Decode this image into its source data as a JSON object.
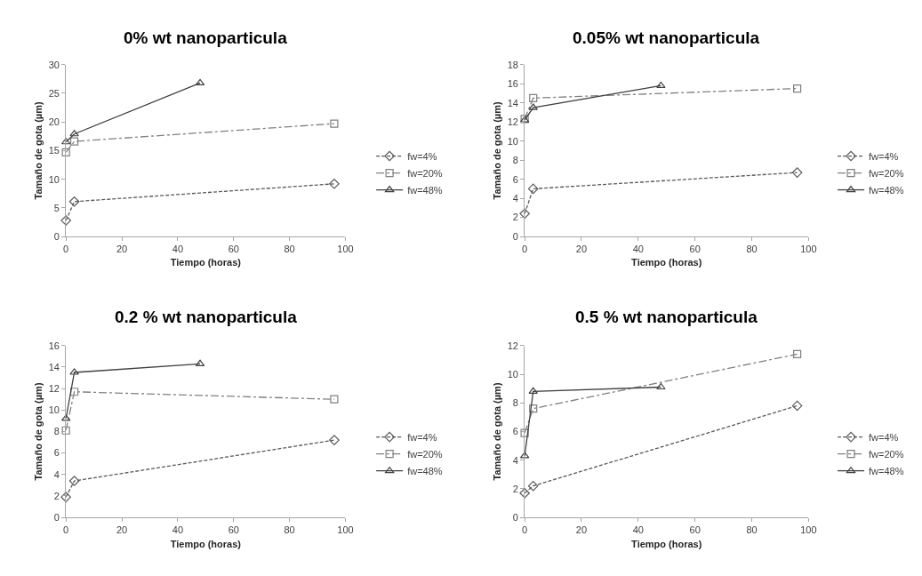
{
  "chart_data": [
    {
      "type": "line",
      "title": "0% wt nanoparticula",
      "xlabel": "Tiempo (horas)",
      "ylabel": "Tamaño de gota (µm)",
      "xlim": [
        0,
        100
      ],
      "xticks": [
        0,
        20,
        40,
        60,
        80,
        100
      ],
      "ylim": [
        0,
        30
      ],
      "yticks": [
        0,
        5,
        10,
        15,
        20,
        25,
        30
      ],
      "grid": false,
      "legend": "right",
      "series": [
        {
          "name": "fw=4%",
          "color": "#595959",
          "marker": "diamond",
          "line_style": "dotted",
          "x": [
            0,
            3,
            96
          ],
          "values": [
            2.8,
            6.1,
            9.2
          ]
        },
        {
          "name": "fw=20%",
          "color": "#808080",
          "marker": "square",
          "line_style": "dashed",
          "x": [
            0,
            3,
            96
          ],
          "values": [
            14.7,
            16.6,
            19.7
          ]
        },
        {
          "name": "fw=48%",
          "color": "#404040",
          "marker": "triangle",
          "line_style": "solid",
          "x": [
            0,
            3,
            48
          ],
          "values": [
            16.5,
            17.9,
            26.8
          ]
        }
      ]
    },
    {
      "type": "line",
      "title": "0.05% wt nanoparticula",
      "xlabel": "Tiempo (horas)",
      "ylabel": "Tamaño de gota (µm)",
      "xlim": [
        0,
        100
      ],
      "xticks": [
        0,
        20,
        40,
        60,
        80,
        100
      ],
      "ylim": [
        0,
        18
      ],
      "yticks": [
        0,
        2,
        4,
        6,
        8,
        10,
        12,
        14,
        16,
        18
      ],
      "grid": false,
      "legend": "right",
      "series": [
        {
          "name": "fw=4%",
          "color": "#595959",
          "marker": "diamond",
          "line_style": "dotted",
          "x": [
            0,
            3,
            96
          ],
          "values": [
            2.4,
            5.0,
            6.7
          ]
        },
        {
          "name": "fw=20%",
          "color": "#808080",
          "marker": "square",
          "line_style": "dashed",
          "x": [
            0,
            3,
            96
          ],
          "values": [
            12.3,
            14.5,
            15.5
          ]
        },
        {
          "name": "fw=48%",
          "color": "#404040",
          "marker": "triangle",
          "line_style": "solid",
          "x": [
            0,
            3,
            48
          ],
          "values": [
            12.2,
            13.5,
            15.8
          ]
        }
      ]
    },
    {
      "type": "line",
      "title": "0.2 % wt nanoparticula",
      "xlabel": "Tiempo (horas)",
      "ylabel": "Tamaño de gota (µm)",
      "xlim": [
        0,
        100
      ],
      "xticks": [
        0,
        20,
        40,
        60,
        80,
        100
      ],
      "ylim": [
        0,
        16
      ],
      "yticks": [
        0,
        2,
        4,
        6,
        8,
        10,
        12,
        14,
        16
      ],
      "grid": false,
      "legend": "right",
      "series": [
        {
          "name": "fw=4%",
          "color": "#595959",
          "marker": "diamond",
          "line_style": "dotted",
          "x": [
            0,
            3,
            96
          ],
          "values": [
            1.9,
            3.4,
            7.2
          ]
        },
        {
          "name": "fw=20%",
          "color": "#808080",
          "marker": "square",
          "line_style": "dashed",
          "x": [
            0,
            3,
            96
          ],
          "values": [
            8.1,
            11.7,
            11.0
          ]
        },
        {
          "name": "fw=48%",
          "color": "#404040",
          "marker": "triangle",
          "line_style": "solid",
          "x": [
            0,
            3,
            48
          ],
          "values": [
            9.2,
            13.5,
            14.3
          ]
        }
      ]
    },
    {
      "type": "line",
      "title": "0.5 % wt nanoparticula",
      "xlabel": "Tiempo (horas)",
      "ylabel": "Tamaño de gota (µm)",
      "xlim": [
        0,
        100
      ],
      "xticks": [
        0,
        20,
        40,
        60,
        80,
        100
      ],
      "ylim": [
        0,
        12
      ],
      "yticks": [
        0,
        2,
        4,
        6,
        8,
        10,
        12
      ],
      "grid": false,
      "legend": "right",
      "series": [
        {
          "name": "fw=4%",
          "color": "#595959",
          "marker": "diamond",
          "line_style": "dotted",
          "x": [
            0,
            3,
            96
          ],
          "values": [
            1.7,
            2.2,
            7.8
          ]
        },
        {
          "name": "fw=20%",
          "color": "#808080",
          "marker": "square",
          "line_style": "dashed",
          "x": [
            0,
            3,
            96
          ],
          "values": [
            5.9,
            7.6,
            11.4
          ]
        },
        {
          "name": "fw=48%",
          "color": "#404040",
          "marker": "triangle",
          "line_style": "solid",
          "x": [
            0,
            3,
            48
          ],
          "values": [
            4.3,
            8.8,
            9.1
          ]
        }
      ]
    }
  ]
}
